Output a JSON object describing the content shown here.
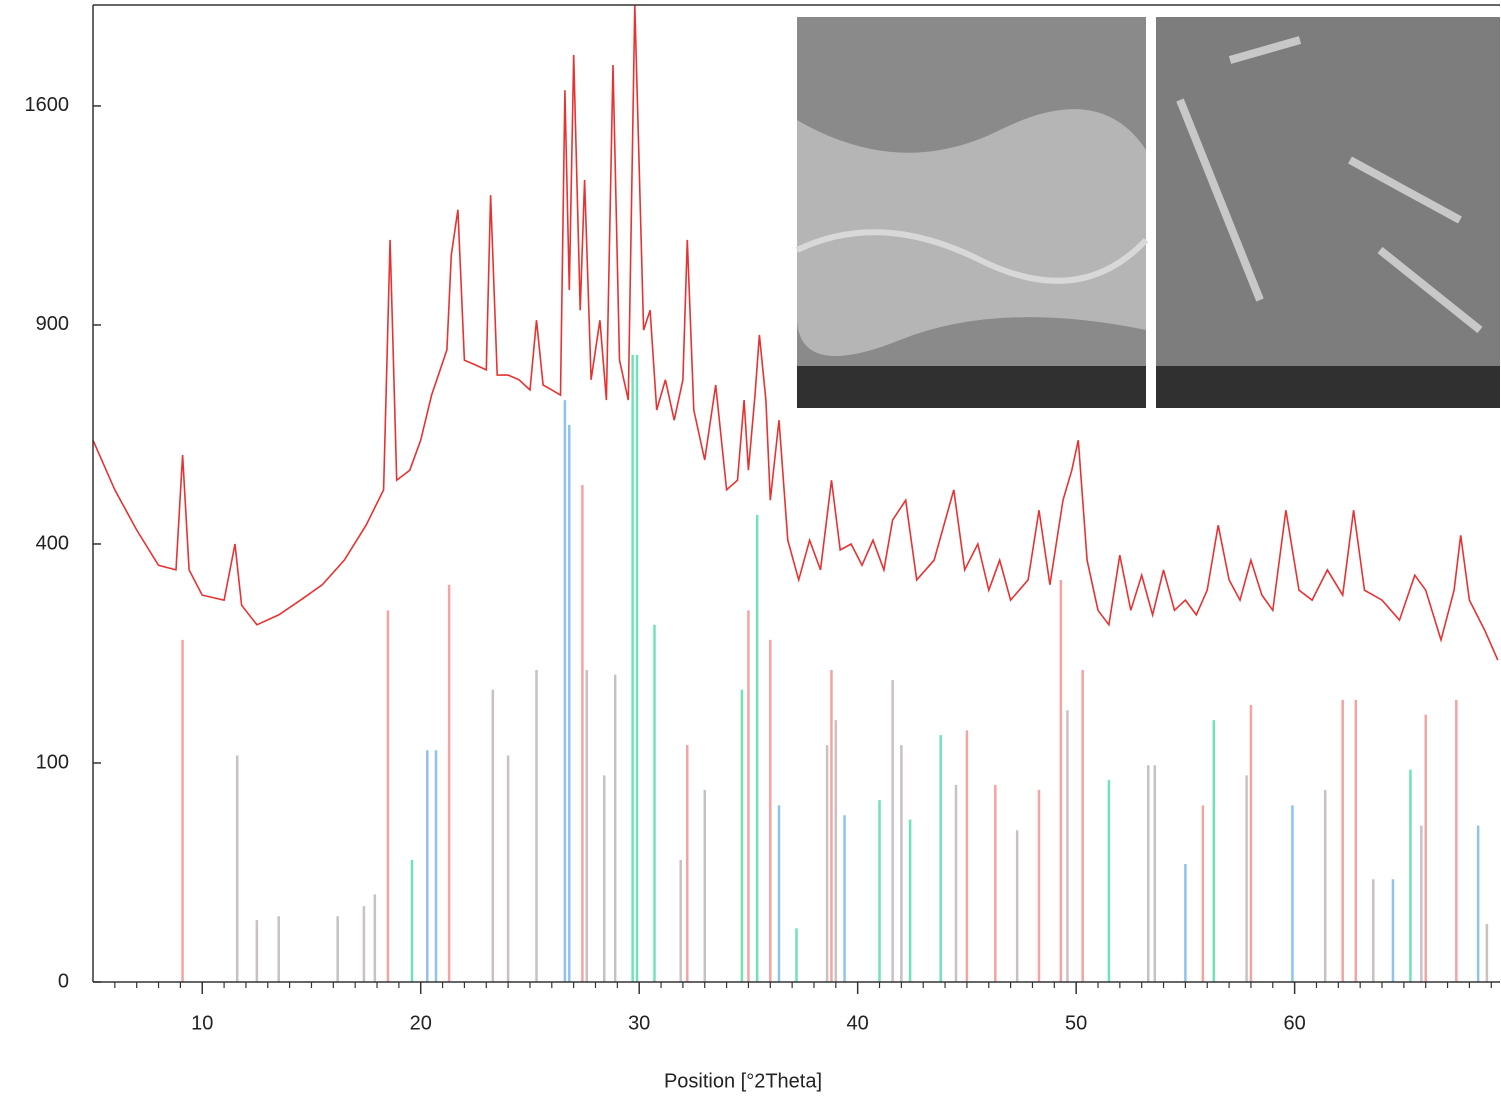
{
  "chart_data": {
    "type": "line",
    "x_label": "Position [°2Theta]",
    "xlim": [
      5,
      69.4
    ],
    "xticks": [
      10,
      20,
      30,
      40,
      50,
      60
    ],
    "xminorticks": [
      6,
      7,
      8,
      9,
      11,
      12,
      13,
      14,
      15,
      16,
      17,
      18,
      19,
      21,
      22,
      23,
      24,
      25,
      26,
      27,
      28,
      29,
      31,
      32,
      33,
      34,
      35,
      36,
      37,
      38,
      39,
      41,
      42,
      43,
      44,
      45,
      46,
      47,
      48,
      49,
      51,
      52,
      53,
      54,
      55,
      56,
      57,
      58,
      59,
      61,
      62,
      63,
      64,
      65,
      66,
      67,
      68,
      69
    ],
    "ylim": [
      0,
      1990
    ],
    "yticks": [
      0,
      100,
      400,
      900,
      1600
    ],
    "yscale": "sqrt",
    "grid": false,
    "series": [
      {
        "style": "stick",
        "color": "#f4a3a3",
        "x": [
          9.1,
          18.5,
          21.3,
          27.4,
          32.2,
          35,
          36,
          38.8,
          45,
          46.3,
          48.3,
          49.3,
          50.3,
          55.8,
          58,
          62.2,
          62.8,
          66,
          67.4
        ],
        "values": [
          244,
          288,
          329,
          515,
          117,
          288,
          244,
          203,
          132,
          81,
          77,
          337,
          203,
          65,
          160,
          166,
          166,
          149,
          166
        ]
      },
      {
        "style": "stick",
        "color": "#c9c1c1",
        "x": [
          11.6,
          12.5,
          13.5,
          16.2,
          17.4,
          17.9,
          23.3,
          24,
          25.3,
          27.6,
          28.4,
          28.9,
          31.9,
          33,
          38.6,
          39,
          41.6,
          42,
          44.5,
          47.3,
          49.6,
          53.3,
          53.6,
          57.8,
          61.4,
          63.6,
          65.8,
          68.8
        ],
        "values": [
          107,
          8,
          9,
          9,
          12,
          16,
          178,
          107,
          203,
          203,
          89,
          197,
          31,
          77,
          117,
          143,
          190,
          117,
          81,
          48,
          154,
          98,
          98,
          89,
          77,
          22,
          51,
          7
        ]
      },
      {
        "style": "stick",
        "color": "#8ec3ef",
        "x": [
          20.3,
          20.7,
          26.6,
          26.8,
          36.4,
          39.4,
          55,
          59.9,
          64.5,
          68.4
        ],
        "values": [
          112,
          112,
          706,
          647,
          65,
          58,
          29,
          65,
          22,
          51
        ]
      },
      {
        "style": "stick",
        "color": "#6fe3b8",
        "x": [
          19.6,
          29.7,
          29.9,
          30.7,
          34.7,
          35.4,
          37.2,
          41,
          42.4,
          43.8,
          51.5,
          56.3,
          65.3
        ],
        "values": [
          31,
          820,
          820,
          266,
          178,
          455,
          6,
          69,
          55,
          127,
          85,
          143,
          94
        ]
      },
      {
        "style": "line",
        "color": "#e83232",
        "x": [
          5,
          6,
          7,
          8,
          8.8,
          9.1,
          9.4,
          10,
          11,
          11.5,
          11.8,
          12.5,
          13.5,
          14.5,
          15.5,
          16.5,
          17.5,
          18.3,
          18.6,
          18.9,
          19.5,
          20,
          20.5,
          21.2,
          21.4,
          21.7,
          22,
          22.5,
          23,
          23.2,
          23.5,
          24,
          24.5,
          25,
          25.3,
          25.6,
          26,
          26.4,
          26.6,
          26.8,
          27,
          27.3,
          27.5,
          27.8,
          28.2,
          28.5,
          28.8,
          29.1,
          29.5,
          29.8,
          30.2,
          30.5,
          30.8,
          31.2,
          31.6,
          32,
          32.2,
          32.5,
          33,
          33.5,
          34,
          34.5,
          34.8,
          35,
          35.3,
          35.5,
          35.8,
          36,
          36.4,
          36.8,
          37.3,
          37.8,
          38.3,
          38.8,
          39.2,
          39.7,
          40.2,
          40.7,
          41.2,
          41.6,
          42.2,
          42.7,
          43.5,
          44.4,
          44.9,
          45.5,
          46,
          46.5,
          47,
          47.8,
          48.3,
          48.8,
          49.4,
          49.8,
          50.1,
          50.5,
          51,
          51.5,
          52,
          52.5,
          53,
          53.5,
          54,
          54.5,
          55,
          55.5,
          56,
          56.5,
          57,
          57.5,
          58,
          58.5,
          59,
          59.6,
          60.2,
          60.8,
          61.5,
          62.2,
          62.7,
          63.2,
          64,
          64.8,
          65.5,
          66,
          66.7,
          67.3,
          67.6,
          68,
          68.7,
          69.3
        ],
        "values": [
          612,
          505,
          426,
          362,
          354,
          579,
          354,
          312,
          304,
          400,
          296,
          266,
          281,
          304,
          329,
          371,
          435,
          505,
          1148,
          525,
          546,
          612,
          718,
          833,
          1102,
          1243,
          806,
          794,
          781,
          1291,
          768,
          768,
          756,
          731,
          913,
          743,
          731,
          718,
          1658,
          998,
          1792,
          941,
          1341,
          756,
          913,
          706,
          1753,
          806,
          706,
          1990,
          886,
          941,
          682,
          756,
          658,
          756,
          1148,
          682,
          568,
          743,
          505,
          525,
          706,
          546,
          718,
          873,
          706,
          484,
          658,
          407,
          337,
          407,
          354,
          525,
          389,
          400,
          362,
          407,
          354,
          445,
          484,
          337,
          371,
          505,
          354,
          400,
          320,
          371,
          304,
          337,
          464,
          329,
          484,
          546,
          612,
          371,
          288,
          266,
          380,
          288,
          345,
          281,
          354,
          288,
          304,
          281,
          320,
          435,
          337,
          304,
          371,
          312,
          288,
          464,
          320,
          304,
          354,
          312,
          464,
          320,
          304,
          273,
          345,
          320,
          244,
          320,
          416,
          304,
          258,
          216
        ]
      }
    ]
  }
}
